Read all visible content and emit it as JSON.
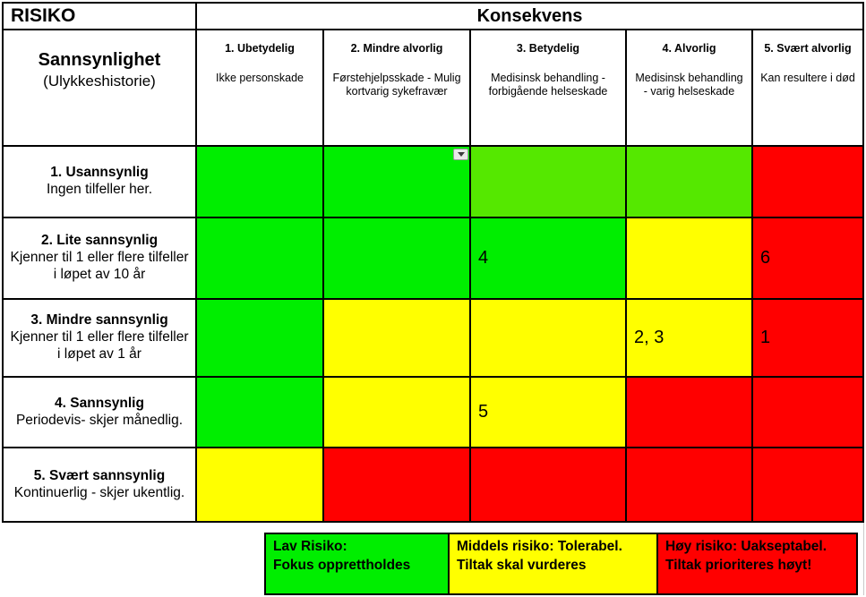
{
  "titles": {
    "risk": "RISIKO",
    "consequence": "Konsekvens",
    "probability": "Sannsynlighet",
    "probability_sub": "(Ulykkeshistorie)"
  },
  "columns": [
    {
      "title": "1. Ubetydelig",
      "description": "Ikke personskade"
    },
    {
      "title": "2. Mindre alvorlig",
      "description": "Førstehjelpsskade - Mulig kortvarig sykefravær"
    },
    {
      "title": "3. Betydelig",
      "description": "Medisinsk behandling - forbigående helseskade"
    },
    {
      "title": "4. Alvorlig",
      "description": "Medisinsk behandling - varig helseskade"
    },
    {
      "title": "5. Svært alvorlig",
      "description": "Kan resultere i død"
    }
  ],
  "rows": [
    {
      "title": "1. Usannsynlig",
      "description": "Ingen tilfeller her.",
      "cells": [
        {
          "color": "green",
          "value": ""
        },
        {
          "color": "green",
          "value": "",
          "dropdown": true
        },
        {
          "color": "light_green",
          "value": ""
        },
        {
          "color": "light_green",
          "value": ""
        },
        {
          "color": "red",
          "value": ""
        }
      ]
    },
    {
      "title": "2. Lite sannsynlig",
      "description": "Kjenner til 1 eller flere tilfeller i løpet av 10 år",
      "cells": [
        {
          "color": "green",
          "value": ""
        },
        {
          "color": "green",
          "value": ""
        },
        {
          "color": "green",
          "value": "4"
        },
        {
          "color": "yellow",
          "value": ""
        },
        {
          "color": "red",
          "value": "6"
        }
      ]
    },
    {
      "title": "3. Mindre sannsynlig",
      "description": "Kjenner til 1 eller flere tilfeller i løpet av 1 år",
      "cells": [
        {
          "color": "green",
          "value": ""
        },
        {
          "color": "yellow",
          "value": ""
        },
        {
          "color": "yellow",
          "value": ""
        },
        {
          "color": "yellow",
          "value": "2, 3"
        },
        {
          "color": "red",
          "value": "1"
        }
      ]
    },
    {
      "title": "4. Sannsynlig",
      "description": "Periodevis- skjer månedlig.",
      "cells": [
        {
          "color": "green",
          "value": ""
        },
        {
          "color": "yellow",
          "value": ""
        },
        {
          "color": "yellow",
          "value": "5"
        },
        {
          "color": "red",
          "value": ""
        },
        {
          "color": "red",
          "value": ""
        }
      ]
    },
    {
      "title": "5. Svært sannsynlig",
      "description": "Kontinuerlig - skjer ukentlig.",
      "cells": [
        {
          "color": "yellow",
          "value": ""
        },
        {
          "color": "red",
          "value": ""
        },
        {
          "color": "red",
          "value": ""
        },
        {
          "color": "red",
          "value": ""
        },
        {
          "color": "red",
          "value": ""
        }
      ]
    }
  ],
  "legend": [
    {
      "color": "green",
      "lines": [
        "Lav Risiko:",
        "Fokus opprettholdes"
      ]
    },
    {
      "color": "yellow",
      "lines": [
        "Middels risiko: Tolerabel.",
        "Tiltak skal vurderes"
      ]
    },
    {
      "color": "red",
      "lines": [
        "Høy risiko: Uakseptabel.",
        "Tiltak prioriteres høyt!"
      ]
    }
  ],
  "colors": {
    "green": "#00ee00",
    "light_green": "#55e800",
    "yellow": "#ffff00",
    "red": "#ff0000",
    "border": "#000000"
  }
}
